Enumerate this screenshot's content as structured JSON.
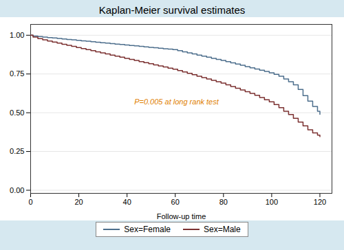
{
  "chart_data": {
    "type": "step",
    "title": "Kaplan-Meier survival estimates",
    "xlabel": "Follow-up time",
    "x": [
      0,
      1,
      3,
      5,
      7,
      9,
      11,
      13,
      15,
      17,
      19,
      21,
      23,
      25,
      27,
      29,
      31,
      33,
      35,
      37,
      39,
      41,
      43,
      45,
      47,
      49,
      51,
      53,
      55,
      57,
      59,
      61,
      63,
      65,
      67,
      69,
      71,
      73,
      75,
      77,
      79,
      81,
      83,
      85,
      87,
      89,
      91,
      93,
      95,
      97,
      99,
      101,
      103,
      105,
      107,
      109,
      111,
      113,
      115,
      117,
      119,
      120
    ],
    "series": [
      {
        "name": "Sex=Female",
        "color": "#4C6E8C",
        "values": [
          1.0,
          0.995,
          0.991,
          0.988,
          0.985,
          0.982,
          0.979,
          0.976,
          0.973,
          0.97,
          0.967,
          0.964,
          0.961,
          0.958,
          0.955,
          0.952,
          0.949,
          0.946,
          0.943,
          0.94,
          0.937,
          0.934,
          0.931,
          0.928,
          0.925,
          0.922,
          0.919,
          0.916,
          0.913,
          0.91,
          0.907,
          0.9,
          0.893,
          0.886,
          0.879,
          0.872,
          0.865,
          0.858,
          0.851,
          0.844,
          0.837,
          0.83,
          0.822,
          0.814,
          0.806,
          0.798,
          0.79,
          0.782,
          0.774,
          0.766,
          0.758,
          0.748,
          0.735,
          0.718,
          0.7,
          0.68,
          0.65,
          0.61,
          0.575,
          0.54,
          0.51,
          0.49
        ]
      },
      {
        "name": "Sex=Male",
        "color": "#7B3030",
        "values": [
          1.0,
          0.988,
          0.978,
          0.97,
          0.963,
          0.956,
          0.949,
          0.942,
          0.935,
          0.928,
          0.921,
          0.914,
          0.907,
          0.9,
          0.893,
          0.886,
          0.879,
          0.872,
          0.865,
          0.858,
          0.851,
          0.844,
          0.837,
          0.83,
          0.823,
          0.816,
          0.809,
          0.802,
          0.795,
          0.788,
          0.781,
          0.772,
          0.763,
          0.754,
          0.745,
          0.736,
          0.727,
          0.718,
          0.709,
          0.7,
          0.691,
          0.68,
          0.669,
          0.658,
          0.647,
          0.636,
          0.625,
          0.612,
          0.598,
          0.584,
          0.57,
          0.553,
          0.533,
          0.51,
          0.488,
          0.464,
          0.44,
          0.415,
          0.39,
          0.37,
          0.355,
          0.345
        ]
      }
    ],
    "annotations": [
      {
        "text": "P=0.005 at long rank test",
        "x": 43,
        "y": 0.545,
        "color": "#E08000"
      }
    ],
    "xlim": [
      0,
      125
    ],
    "xticks": [
      0,
      20,
      40,
      60,
      80,
      100,
      120
    ],
    "ylim": [
      -0.02,
      1.07
    ],
    "yticks": [
      {
        "value": 0,
        "label": "0.00"
      },
      {
        "value": 0.25,
        "label": "0.25"
      },
      {
        "value": 0.5,
        "label": "0.50"
      },
      {
        "value": 0.75,
        "label": "0.75"
      },
      {
        "value": 1,
        "label": "1.00"
      }
    ],
    "grid": true,
    "legend": "bottom"
  }
}
